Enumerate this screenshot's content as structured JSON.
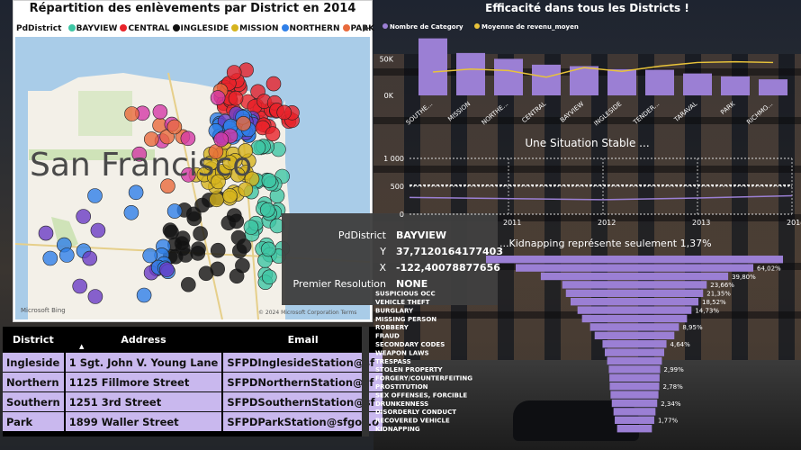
{
  "map": {
    "title": "Répartition des enlèvements par District en 2014",
    "legend_title": "PdDistrict",
    "legend": [
      {
        "label": "BAYVIEW",
        "color": "#3ec6a4"
      },
      {
        "label": "CENTRAL",
        "color": "#e8232a"
      },
      {
        "label": "INGLESIDE",
        "color": "#111111"
      },
      {
        "label": "MISSION",
        "color": "#d6b41e"
      },
      {
        "label": "NORTHERN",
        "color": "#2f7fe8"
      },
      {
        "label": "PARK",
        "color": "#e86a3c"
      }
    ],
    "city_label": "San Francisco",
    "attribution": "© 2024 Microsoft Corporation  Terms",
    "brand": "Microsoft Bing"
  },
  "tooltip": {
    "rows": [
      {
        "k": "PdDistrict",
        "v": "BAYVIEW"
      },
      {
        "k": "Y",
        "v": "37,7120164177403"
      },
      {
        "k": "X",
        "v": "-122,40078877656"
      },
      {
        "k": "Premier Resolution",
        "v": "NONE"
      }
    ]
  },
  "table": {
    "headers": [
      "District",
      "Address",
      "Email"
    ],
    "rows": [
      [
        "Ingleside",
        "1 Sgt. John V. Young Lane",
        "SFPDInglesideStation@sf"
      ],
      [
        "Northern",
        "1125 Fillmore Street",
        "SFPDNorthernStation@sf"
      ],
      [
        "Southern",
        "1251 3rd Street",
        "SFPDSouthernStation@sf"
      ],
      [
        "Park",
        "1899 Waller Street",
        "SFPDParkStation@sfgov.o"
      ]
    ]
  },
  "efficacite": {
    "title": "Efficacité dans tous les Districts !",
    "legend": [
      {
        "label": "Nombre de Category",
        "color": "#9b7fd4"
      },
      {
        "label": "Moyenne de revenu_moyen",
        "color": "#e8c33a"
      }
    ]
  },
  "situation": {
    "title": "Une Situation Stable ..."
  },
  "funnel": {
    "title": "...Kidnapping représente seulement 1,37%"
  },
  "chart_data": [
    {
      "type": "bar",
      "title": "Efficacité dans tous les Districts !",
      "categories": [
        "SOUTHE...",
        "MISSION",
        "NORTHE...",
        "CENTRAL",
        "BAYVIEW",
        "INGLESIDE",
        "TENDER...",
        "TARAVAL",
        "PARK",
        "RICHMO..."
      ],
      "yticks": [
        "0K",
        "50K"
      ],
      "ylim": [
        0,
        80000
      ],
      "series": [
        {
          "name": "Nombre de Category",
          "values": [
            78000,
            58000,
            50000,
            42000,
            40000,
            36000,
            35000,
            30000,
            26000,
            22000
          ]
        },
        {
          "name": "Moyenne de revenu_moyen",
          "values": [
            32000,
            36000,
            34000,
            25000,
            38000,
            33000,
            40000,
            45000,
            46000,
            45000
          ]
        }
      ]
    },
    {
      "type": "line",
      "title": "Une Situation Stable ...",
      "x": [
        "2011",
        "2012",
        "2013",
        "2014"
      ],
      "yticks": [
        "0",
        "500",
        "1 000"
      ],
      "ylim": [
        0,
        1000
      ],
      "series": [
        {
          "name": "upper",
          "values": [
            520,
            520,
            520,
            520
          ]
        },
        {
          "name": "lower",
          "values": [
            300,
            260,
            290,
            330
          ]
        }
      ]
    },
    {
      "type": "bar",
      "title": "...Kidnapping représente seulement 1,37%",
      "categories": [
        "",
        "",
        "",
        "",
        "SUSPICIOUS OCC",
        "VEHICLE THEFT",
        "BURGLARY",
        "MISSING PERSON",
        "ROBBERY",
        "FRAUD",
        "SECONDARY CODES",
        "WEAPON LAWS",
        "TRESPASS",
        "STOLEN PROPERTY",
        "FORGERY/COUNTERFEITING",
        "PROSTITUTION",
        "SEX OFFENSES, FORCIBLE",
        "DRUNKENNESS",
        "DISORDERLY CONDUCT",
        "RECOVERED VEHICLE",
        "KIDNAPPING"
      ],
      "values": [
        100,
        64.02,
        39.8,
        23.66,
        21.35,
        18.52,
        14.73,
        12.5,
        8.95,
        7.2,
        4.64,
        4.0,
        3.4,
        2.99,
        2.85,
        2.78,
        2.6,
        2.34,
        2.0,
        1.77,
        1.37
      ],
      "data_labels": [
        "",
        "64,02%",
        "39,80%",
        "23,66%",
        "21,35%",
        "18,52%",
        "14,73%",
        "",
        "8,95%",
        "",
        "4,64%",
        "",
        "",
        "2,99%",
        "",
        "2,78%",
        "",
        "2,34%",
        "",
        "1,77%",
        ""
      ]
    }
  ]
}
